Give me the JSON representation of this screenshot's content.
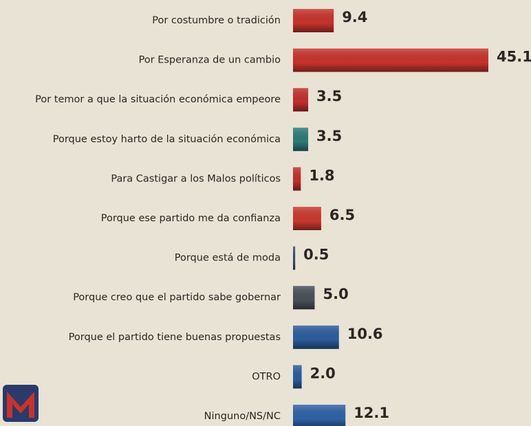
{
  "chart_data": {
    "type": "bar",
    "orientation": "horizontal",
    "categories": [
      "Por costumbre o tradición",
      "Por Esperanza de un cambio",
      "Por temor a que la situación económica empeore",
      "Porque estoy harto de la situación económica",
      "Para Castigar a los Malos políticos",
      "Porque ese partido me da confianza",
      "Porque está de moda",
      "Porque creo que el partido sabe gobernar",
      "Porque el partido tiene buenas propuestas",
      "OTRO",
      "Ninguno/NS/NC"
    ],
    "values": [
      9.4,
      45.1,
      3.5,
      3.5,
      1.8,
      6.5,
      0.5,
      5.0,
      10.6,
      2.0,
      12.1
    ],
    "value_labels": [
      "9.4",
      "45.1",
      "3.5",
      "3.5",
      "1.8",
      "6.5",
      "0.5",
      "5.0",
      "10.6",
      "2.0",
      "12.1"
    ],
    "colors": [
      "#c7332c",
      "#c7332c",
      "#c0302c",
      "#2c7a78",
      "#c0302c",
      "#c8392f",
      "#3c4a6c",
      "#4a5058",
      "#2b5c9c",
      "#2b5c9c",
      "#2f62a6"
    ]
  }
}
